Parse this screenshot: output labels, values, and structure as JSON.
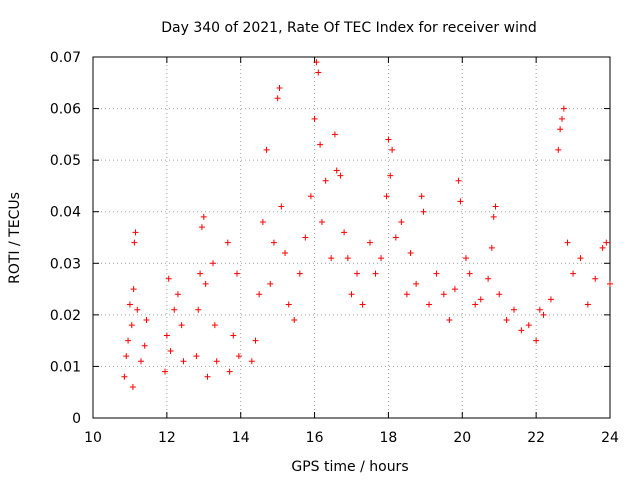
{
  "chart_data": {
    "type": "scatter",
    "title": "Day 340 of 2021, Rate Of TEC Index for receiver wind",
    "xlabel": "GPS time / hours",
    "ylabel": "ROTI / TECUs",
    "xlim": [
      10,
      24
    ],
    "ylim": [
      0,
      0.07
    ],
    "x_ticks": [
      "10",
      "12",
      "14",
      "16",
      "18",
      "20",
      "22",
      "24"
    ],
    "y_ticks": [
      "0",
      "0.01",
      "0.02",
      "0.03",
      "0.04",
      "0.05",
      "0.06",
      "0.07"
    ],
    "grid": true,
    "marker": "+",
    "color": "#ff0000",
    "series": [
      {
        "name": "ROTI",
        "points": [
          [
            10.85,
            0.008
          ],
          [
            10.9,
            0.012
          ],
          [
            10.95,
            0.015
          ],
          [
            11.0,
            0.022
          ],
          [
            11.05,
            0.018
          ],
          [
            11.1,
            0.025
          ],
          [
            11.12,
            0.034
          ],
          [
            11.15,
            0.036
          ],
          [
            11.2,
            0.021
          ],
          [
            11.08,
            0.006
          ],
          [
            11.3,
            0.011
          ],
          [
            11.4,
            0.014
          ],
          [
            11.45,
            0.019
          ],
          [
            11.95,
            0.009
          ],
          [
            12.0,
            0.016
          ],
          [
            12.05,
            0.027
          ],
          [
            12.1,
            0.013
          ],
          [
            12.2,
            0.021
          ],
          [
            12.3,
            0.024
          ],
          [
            12.4,
            0.018
          ],
          [
            12.45,
            0.011
          ],
          [
            12.8,
            0.012
          ],
          [
            12.85,
            0.021
          ],
          [
            12.9,
            0.028
          ],
          [
            12.95,
            0.037
          ],
          [
            13.0,
            0.039
          ],
          [
            13.05,
            0.026
          ],
          [
            13.1,
            0.008
          ],
          [
            13.25,
            0.03
          ],
          [
            13.3,
            0.018
          ],
          [
            13.35,
            0.011
          ],
          [
            13.65,
            0.034
          ],
          [
            13.7,
            0.009
          ],
          [
            13.8,
            0.016
          ],
          [
            13.9,
            0.028
          ],
          [
            13.95,
            0.012
          ],
          [
            14.3,
            0.011
          ],
          [
            14.4,
            0.015
          ],
          [
            14.5,
            0.024
          ],
          [
            14.6,
            0.038
          ],
          [
            14.7,
            0.052
          ],
          [
            14.8,
            0.026
          ],
          [
            14.9,
            0.034
          ],
          [
            15.0,
            0.062
          ],
          [
            15.05,
            0.064
          ],
          [
            15.1,
            0.041
          ],
          [
            15.2,
            0.032
          ],
          [
            15.3,
            0.022
          ],
          [
            15.45,
            0.019
          ],
          [
            15.6,
            0.028
          ],
          [
            15.75,
            0.035
          ],
          [
            15.9,
            0.043
          ],
          [
            16.0,
            0.058
          ],
          [
            16.05,
            0.069
          ],
          [
            16.1,
            0.067
          ],
          [
            16.15,
            0.053
          ],
          [
            16.2,
            0.038
          ],
          [
            16.3,
            0.046
          ],
          [
            16.45,
            0.031
          ],
          [
            16.55,
            0.055
          ],
          [
            16.6,
            0.048
          ],
          [
            16.7,
            0.047
          ],
          [
            16.8,
            0.036
          ],
          [
            16.9,
            0.031
          ],
          [
            17.0,
            0.024
          ],
          [
            17.15,
            0.028
          ],
          [
            17.3,
            0.022
          ],
          [
            17.5,
            0.034
          ],
          [
            17.65,
            0.028
          ],
          [
            17.8,
            0.031
          ],
          [
            17.95,
            0.043
          ],
          [
            18.0,
            0.054
          ],
          [
            18.05,
            0.047
          ],
          [
            18.1,
            0.052
          ],
          [
            18.2,
            0.035
          ],
          [
            18.35,
            0.038
          ],
          [
            18.5,
            0.024
          ],
          [
            18.6,
            0.032
          ],
          [
            18.75,
            0.026
          ],
          [
            18.9,
            0.043
          ],
          [
            18.95,
            0.04
          ],
          [
            19.1,
            0.022
          ],
          [
            19.3,
            0.028
          ],
          [
            19.5,
            0.024
          ],
          [
            19.65,
            0.019
          ],
          [
            19.8,
            0.025
          ],
          [
            19.9,
            0.046
          ],
          [
            19.95,
            0.042
          ],
          [
            20.1,
            0.031
          ],
          [
            20.2,
            0.028
          ],
          [
            20.35,
            0.022
          ],
          [
            20.5,
            0.023
          ],
          [
            20.7,
            0.027
          ],
          [
            20.8,
            0.033
          ],
          [
            20.85,
            0.039
          ],
          [
            20.9,
            0.041
          ],
          [
            21.0,
            0.024
          ],
          [
            21.2,
            0.019
          ],
          [
            21.4,
            0.021
          ],
          [
            21.6,
            0.017
          ],
          [
            21.8,
            0.018
          ],
          [
            22.0,
            0.015
          ],
          [
            22.1,
            0.021
          ],
          [
            22.2,
            0.02
          ],
          [
            22.4,
            0.023
          ],
          [
            22.6,
            0.052
          ],
          [
            22.65,
            0.056
          ],
          [
            22.7,
            0.058
          ],
          [
            22.75,
            0.06
          ],
          [
            22.85,
            0.034
          ],
          [
            23.0,
            0.028
          ],
          [
            23.2,
            0.031
          ],
          [
            23.4,
            0.022
          ],
          [
            23.6,
            0.027
          ],
          [
            23.8,
            0.033
          ],
          [
            23.9,
            0.034
          ],
          [
            24.0,
            0.026
          ]
        ]
      }
    ]
  }
}
